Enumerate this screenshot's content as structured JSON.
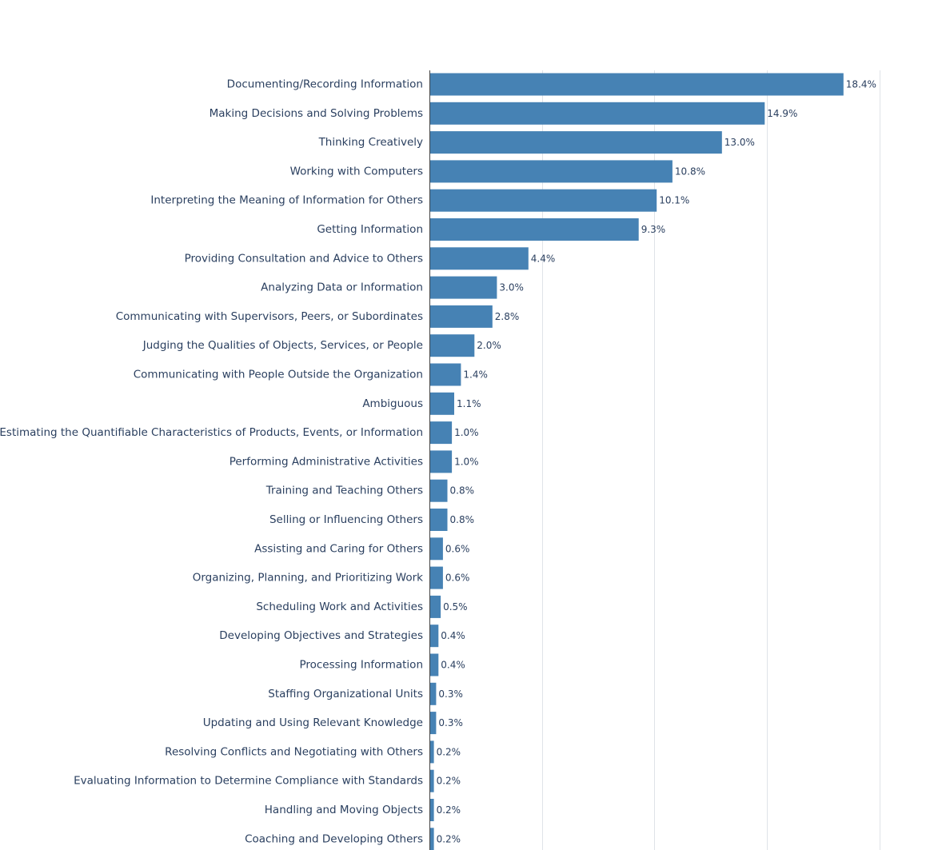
{
  "chart_data": {
    "type": "bar",
    "orientation": "horizontal",
    "categories": [
      "Documenting/Recording Information",
      "Making Decisions and Solving Problems",
      "Thinking Creatively",
      "Working with Computers",
      "Interpreting the Meaning of Information for Others",
      "Getting Information",
      "Providing Consultation and Advice to Others",
      "Analyzing Data or Information",
      "Communicating with Supervisors, Peers, or Subordinates",
      "Judging the Qualities of Objects, Services, or People",
      "Communicating with People Outside the Organization",
      "Ambiguous",
      "Estimating the Quantifiable Characteristics of Products, Events, or Information",
      "Performing Administrative Activities",
      "Training and Teaching Others",
      "Selling or Influencing Others",
      "Assisting and Caring for Others",
      "Organizing, Planning, and Prioritizing Work",
      "Scheduling Work and Activities",
      "Developing Objectives and Strategies",
      "Processing Information",
      "Staffing Organizational Units",
      "Updating and Using Relevant Knowledge",
      "Resolving Conflicts and Negotiating with Others",
      "Evaluating Information to Determine Compliance with Standards",
      "Handling and Moving Objects",
      "Coaching and Developing Others"
    ],
    "values": [
      18.4,
      14.9,
      13.0,
      10.8,
      10.1,
      9.3,
      4.4,
      3.0,
      2.8,
      2.0,
      1.4,
      1.1,
      1.0,
      1.0,
      0.8,
      0.8,
      0.6,
      0.6,
      0.5,
      0.4,
      0.4,
      0.3,
      0.3,
      0.2,
      0.2,
      0.2,
      0.2
    ],
    "labels": [
      "18.4%",
      "14.9%",
      "13.0%",
      "10.8%",
      "10.1%",
      "9.3%",
      "4.4%",
      "3.0%",
      "2.8%",
      "2.0%",
      "1.4%",
      "1.1%",
      "1.0%",
      "1.0%",
      "0.8%",
      "0.8%",
      "0.6%",
      "0.6%",
      "0.5%",
      "0.4%",
      "0.4%",
      "0.3%",
      "0.3%",
      "0.2%",
      "0.2%",
      "0.2%",
      "0.2%"
    ],
    "xlim": [
      0,
      20
    ],
    "gridlines_x": [
      5,
      10,
      15,
      20
    ],
    "grid": true,
    "bar_color": "#4682b4",
    "title": "",
    "xlabel": "",
    "ylabel": ""
  }
}
